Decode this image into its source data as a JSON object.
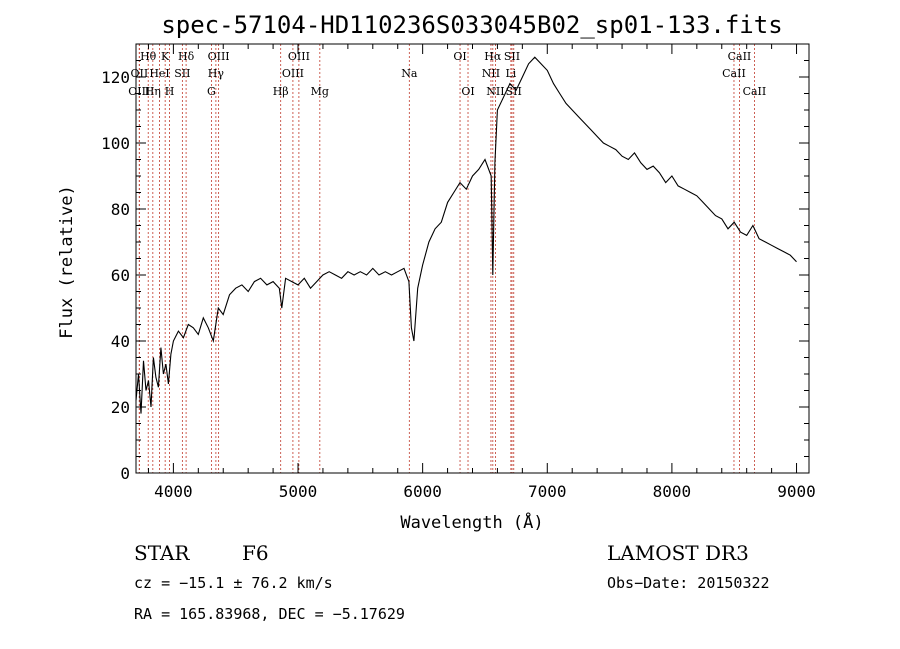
{
  "chart_data": {
    "type": "line",
    "title": "spec-57104-HD110236S033045B02_sp01-133.fits",
    "xlabel": "Wavelength (Å)",
    "ylabel": "Flux (relative)",
    "xlim": [
      3700,
      9100
    ],
    "ylim": [
      0,
      130
    ],
    "xticks": [
      4000,
      5000,
      6000,
      7000,
      8000,
      9000
    ],
    "yticks": [
      0,
      20,
      40,
      60,
      80,
      100,
      120
    ],
    "grid": false,
    "series": [
      {
        "x": [
          3700,
          3720,
          3740,
          3760,
          3780,
          3800,
          3820,
          3840,
          3860,
          3880,
          3900,
          3920,
          3940,
          3960,
          3980,
          4000,
          4040,
          4080,
          4120,
          4160,
          4200,
          4240,
          4280,
          4320,
          4360,
          4400,
          4450,
          4500,
          4550,
          4600,
          4650,
          4700,
          4750,
          4800,
          4850,
          4870,
          4900,
          4950,
          5000,
          5050,
          5100,
          5150,
          5200,
          5250,
          5300,
          5350,
          5400,
          5450,
          5500,
          5550,
          5600,
          5650,
          5700,
          5750,
          5800,
          5850,
          5890,
          5910,
          5930,
          5960,
          6000,
          6050,
          6100,
          6150,
          6200,
          6250,
          6300,
          6350,
          6400,
          6450,
          6500,
          6550,
          6563,
          6580,
          6600,
          6650,
          6700,
          6750,
          6800,
          6850,
          6900,
          6950,
          7000,
          7050,
          7100,
          7150,
          7200,
          7250,
          7300,
          7350,
          7400,
          7450,
          7500,
          7550,
          7600,
          7650,
          7700,
          7750,
          7800,
          7850,
          7900,
          7950,
          8000,
          8050,
          8100,
          8150,
          8200,
          8250,
          8300,
          8350,
          8400,
          8450,
          8500,
          8550,
          8600,
          8650,
          8700,
          8750,
          8800,
          8850,
          8900,
          8950,
          9000
        ],
        "values": [
          22,
          30,
          18,
          34,
          25,
          28,
          20,
          35,
          29,
          26,
          38,
          30,
          33,
          27,
          36,
          40,
          43,
          41,
          45,
          44,
          42,
          47,
          44,
          40,
          50,
          48,
          54,
          56,
          57,
          55,
          58,
          59,
          57,
          58,
          56,
          50,
          59,
          58,
          57,
          59,
          56,
          58,
          60,
          61,
          60,
          59,
          61,
          60,
          61,
          60,
          62,
          60,
          61,
          60,
          61,
          62,
          58,
          44,
          40,
          56,
          63,
          70,
          74,
          76,
          82,
          85,
          88,
          86,
          90,
          92,
          95,
          90,
          60,
          94,
          110,
          114,
          118,
          116,
          120,
          124,
          126,
          124,
          122,
          118,
          115,
          112,
          110,
          108,
          106,
          104,
          102,
          100,
          99,
          98,
          96,
          95,
          97,
          94,
          92,
          93,
          91,
          88,
          90,
          87,
          86,
          85,
          84,
          82,
          80,
          78,
          77,
          74,
          76,
          73,
          72,
          75,
          71,
          70,
          69,
          68,
          67,
          66,
          64
        ]
      }
    ],
    "spectral_lines": [
      {
        "label": "Hθ",
        "x": 3798,
        "row": 0
      },
      {
        "label": "OII",
        "x": 3727,
        "row": 1
      },
      {
        "label": "OIII",
        "x": 3726,
        "row": 2
      },
      {
        "label": "K",
        "x": 3934,
        "row": 0
      },
      {
        "label": "HeI",
        "x": 3889,
        "row": 1
      },
      {
        "label": "Hη",
        "x": 3835,
        "row": 2
      },
      {
        "label": "Hδ",
        "x": 4102,
        "row": 0
      },
      {
        "label": "SII",
        "x": 4072,
        "row": 1
      },
      {
        "label": "H",
        "x": 3969,
        "row": 2
      },
      {
        "label": "OIII",
        "x": 4363,
        "row": 0
      },
      {
        "label": "Hγ",
        "x": 4341,
        "row": 1
      },
      {
        "label": "G",
        "x": 4305,
        "row": 2
      },
      {
        "label": "OIII",
        "x": 5007,
        "row": 0
      },
      {
        "label": "OIII",
        "x": 4959,
        "row": 1
      },
      {
        "label": "Hβ",
        "x": 4861,
        "row": 2
      },
      {
        "label": "Mg",
        "x": 5175,
        "row": 2
      },
      {
        "label": "Na",
        "x": 5893,
        "row": 1
      },
      {
        "label": "OI",
        "x": 6300,
        "row": 0
      },
      {
        "label": "OI",
        "x": 6364,
        "row": 2
      },
      {
        "label": "Hα",
        "x": 6563,
        "row": 0
      },
      {
        "label": "NII",
        "x": 6548,
        "row": 1
      },
      {
        "label": "NII",
        "x": 6584,
        "row": 2
      },
      {
        "label": "SII",
        "x": 6717,
        "row": 0
      },
      {
        "label": "Li",
        "x": 6708,
        "row": 1
      },
      {
        "label": "SII",
        "x": 6731,
        "row": 2
      },
      {
        "label": "CaII",
        "x": 8542,
        "row": 0
      },
      {
        "label": "CaII",
        "x": 8498,
        "row": 1
      },
      {
        "label": "CaII",
        "x": 8662,
        "row": 2
      }
    ]
  },
  "info": {
    "object_class": "STAR",
    "subclass": "F6",
    "survey": "LAMOST DR3",
    "cz": "cz = −15.1 ± 76.2 km/s",
    "obs_date": "Obs−Date: 20150322",
    "coords": "RA = 165.83968, DEC =  −5.17629"
  }
}
